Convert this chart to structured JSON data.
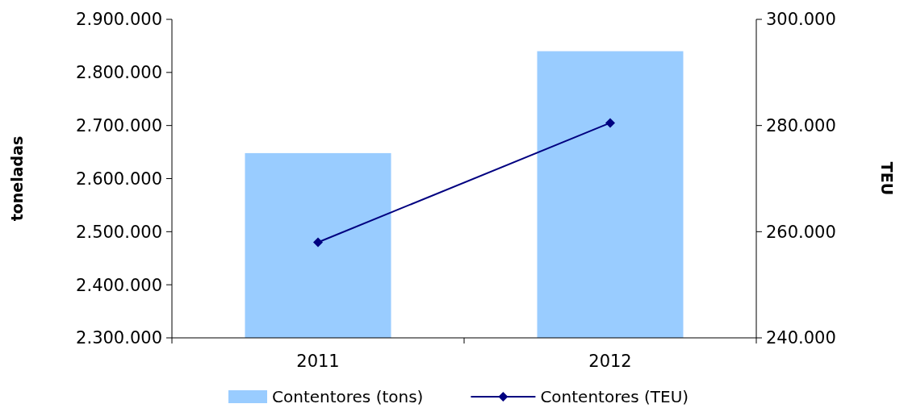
{
  "chart_data": {
    "type": "bar",
    "ylabel": "toneladas",
    "y2label": "TEU",
    "categories": [
      "2011",
      "2012"
    ],
    "series": [
      {
        "name": "Contentores (tons)",
        "color": "#99ccff",
        "values": [
          2648000,
          2840000
        ]
      },
      {
        "name": "Contentores (TEU)",
        "type": "line",
        "axis": "y2",
        "color": "#000080",
        "values": [
          258000,
          280500
        ],
        "marker": "diamond"
      }
    ],
    "ylim": [
      2300000,
      2900000
    ],
    "yticks": [
      {
        "value": 2300000,
        "label": "2.300.000"
      },
      {
        "value": 2400000,
        "label": "2.400.000"
      },
      {
        "value": 2500000,
        "label": "2.500.000"
      },
      {
        "value": 2600000,
        "label": "2.600.000"
      },
      {
        "value": 2700000,
        "label": "2.700.000"
      },
      {
        "value": 2800000,
        "label": "2.800.000"
      },
      {
        "value": 2900000,
        "label": "2.900.000"
      }
    ],
    "y2lim": [
      240000,
      300000
    ],
    "y2ticks": [
      {
        "value": 240000,
        "label": "240.000"
      },
      {
        "value": 260000,
        "label": "260.000"
      },
      {
        "value": 280000,
        "label": "280.000"
      },
      {
        "value": 300000,
        "label": "300.000"
      }
    ],
    "grid": false,
    "legend": "bottom"
  }
}
